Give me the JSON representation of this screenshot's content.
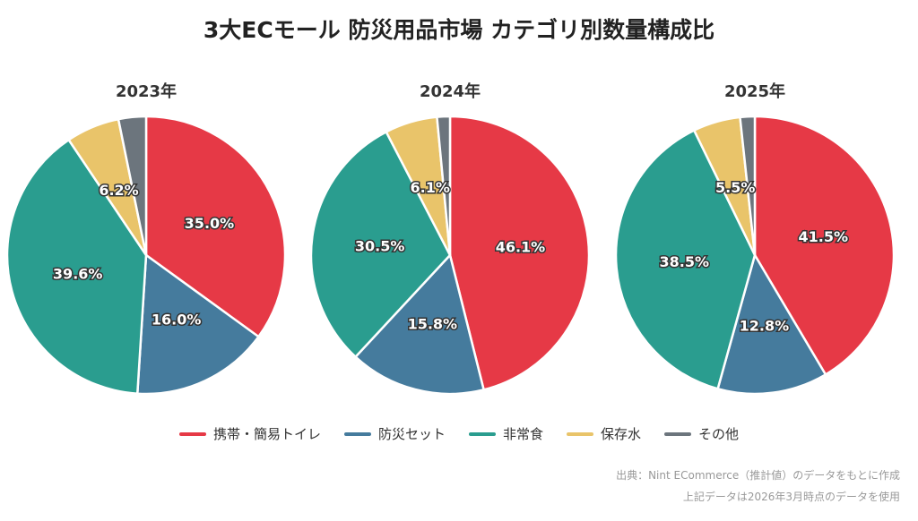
{
  "title": "3大ECモール 防災用品市場 カテゴリ別数量構成比",
  "chart_data": {
    "type": "pie",
    "categories": [
      "携帯・簡易トイレ",
      "防災セット",
      "非常食",
      "保存水",
      "その他"
    ],
    "colors": [
      "#e63946",
      "#457b9d",
      "#2a9d8f",
      "#e9c46a",
      "#6c757d"
    ],
    "charts": [
      {
        "title": "2023年",
        "values": [
          35.0,
          16.0,
          39.6,
          6.2,
          3.2
        ],
        "labels": [
          "35.0%",
          "16.0%",
          "39.6%",
          "6.2%",
          ""
        ]
      },
      {
        "title": "2024年",
        "values": [
          46.1,
          15.8,
          30.5,
          6.1,
          1.5
        ],
        "labels": [
          "46.1%",
          "15.8%",
          "30.5%",
          "6.1%",
          ""
        ]
      },
      {
        "title": "2025年",
        "values": [
          41.5,
          12.8,
          38.5,
          5.5,
          1.7
        ],
        "labels": [
          "41.5%",
          "12.8%",
          "38.5%",
          "5.5%",
          ""
        ]
      }
    ],
    "legend_position": "bottom"
  },
  "notes": [
    "出典：Nint ECommerce（推計値）のデータをもとに作成",
    "上記データは2026年3月時点のデータを使用"
  ]
}
